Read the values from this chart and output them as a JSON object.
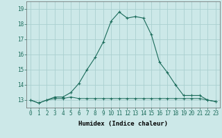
{
  "title": "",
  "xlabel": "Humidex (Indice chaleur)",
  "ylabel": "",
  "bg_color": "#cce8e8",
  "grid_color": "#aad0d0",
  "line_color": "#1a6b5a",
  "x_values": [
    0,
    1,
    2,
    3,
    4,
    5,
    6,
    7,
    8,
    9,
    10,
    11,
    12,
    13,
    14,
    15,
    16,
    17,
    18,
    19,
    20,
    21,
    22,
    23
  ],
  "line1_y": [
    13.0,
    12.8,
    13.0,
    13.1,
    13.1,
    13.2,
    13.1,
    13.1,
    13.1,
    13.1,
    13.1,
    13.1,
    13.1,
    13.1,
    13.1,
    13.1,
    13.1,
    13.1,
    13.1,
    13.1,
    13.1,
    13.1,
    13.0,
    12.9
  ],
  "line2_y": [
    13.0,
    12.8,
    13.0,
    13.2,
    13.2,
    13.5,
    14.1,
    15.0,
    15.8,
    16.8,
    18.2,
    18.8,
    18.4,
    18.5,
    18.4,
    17.3,
    15.5,
    14.8,
    14.0,
    13.3,
    13.3,
    13.3,
    13.0,
    12.9
  ],
  "ylim_min": 12.5,
  "ylim_max": 19.5,
  "yticks": [
    13,
    14,
    15,
    16,
    17,
    18,
    19
  ],
  "xticks": [
    0,
    1,
    2,
    3,
    4,
    5,
    6,
    7,
    8,
    9,
    10,
    11,
    12,
    13,
    14,
    15,
    16,
    17,
    18,
    19,
    20,
    21,
    22,
    23
  ],
  "xlim_min": -0.5,
  "xlim_max": 23.5,
  "label_fontsize": 6.5,
  "tick_fontsize": 5.5
}
